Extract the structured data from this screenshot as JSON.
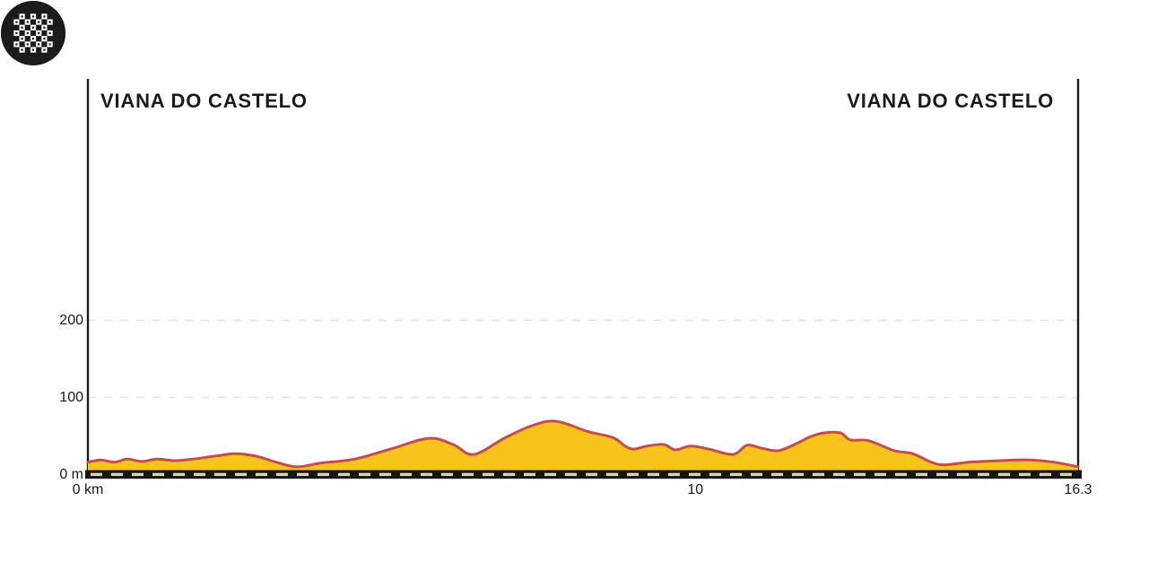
{
  "header": {
    "start_label": "VIANA DO CASTELO",
    "finish_label": "VIANA DO CASTELO"
  },
  "icons": {
    "start": "green-play-start-icon",
    "finish": "black-checkered-finish-icon"
  },
  "colors": {
    "profile_fill": "#F8C41C",
    "profile_stroke": "#C24D52",
    "start_green": "#2E9447",
    "finish_black": "#1B1B1B",
    "road_black": "#151515",
    "road_dash": "#D9D3BE",
    "gridline": "#E3E3E3",
    "axis_line": "#1C1C1C",
    "text": "#1B1B1B",
    "background": "#FFFFFF"
  },
  "chart_data": {
    "type": "area",
    "x_unit": "km",
    "y_unit": "m",
    "xlim": [
      0,
      16.3
    ],
    "ylim": [
      0,
      250
    ],
    "grid": "horizontal dashed",
    "legend_position": "none",
    "distance_total_km": 16.3,
    "x_ticks": [
      {
        "value": 0,
        "label": "0 km"
      },
      {
        "value": 10,
        "label": "10"
      },
      {
        "value": 16.3,
        "label": "16.3"
      }
    ],
    "y_ticks": [
      {
        "value": 0,
        "label": "0 m"
      },
      {
        "value": 100,
        "label": "100"
      },
      {
        "value": 200,
        "label": "200"
      }
    ],
    "y_gridlines": [
      100,
      200
    ],
    "profile_km_m": [
      [
        0.0,
        16
      ],
      [
        0.21,
        19
      ],
      [
        0.44,
        16
      ],
      [
        0.65,
        20
      ],
      [
        0.89,
        17
      ],
      [
        1.14,
        20
      ],
      [
        1.43,
        18
      ],
      [
        1.73,
        20
      ],
      [
        2.1,
        24
      ],
      [
        2.42,
        27
      ],
      [
        2.76,
        24
      ],
      [
        3.06,
        17
      ],
      [
        3.43,
        10
      ],
      [
        3.84,
        15
      ],
      [
        4.39,
        20
      ],
      [
        4.98,
        33
      ],
      [
        5.61,
        47
      ],
      [
        6.01,
        39
      ],
      [
        6.35,
        26
      ],
      [
        6.85,
        47
      ],
      [
        7.23,
        61
      ],
      [
        7.56,
        69
      ],
      [
        7.83,
        67
      ],
      [
        8.22,
        56
      ],
      [
        8.64,
        48
      ],
      [
        8.84,
        37
      ],
      [
        8.99,
        33
      ],
      [
        9.21,
        37
      ],
      [
        9.48,
        39
      ],
      [
        9.67,
        32
      ],
      [
        9.92,
        37
      ],
      [
        10.22,
        33
      ],
      [
        10.62,
        26
      ],
      [
        10.85,
        38
      ],
      [
        11.1,
        34
      ],
      [
        11.37,
        31
      ],
      [
        11.66,
        40
      ],
      [
        11.89,
        49
      ],
      [
        12.11,
        54
      ],
      [
        12.39,
        54
      ],
      [
        12.55,
        45
      ],
      [
        12.85,
        44
      ],
      [
        13.27,
        31
      ],
      [
        13.58,
        27
      ],
      [
        14.01,
        13
      ],
      [
        14.5,
        16
      ],
      [
        15.02,
        18
      ],
      [
        15.5,
        19
      ],
      [
        15.9,
        16
      ],
      [
        16.3,
        10
      ]
    ]
  }
}
